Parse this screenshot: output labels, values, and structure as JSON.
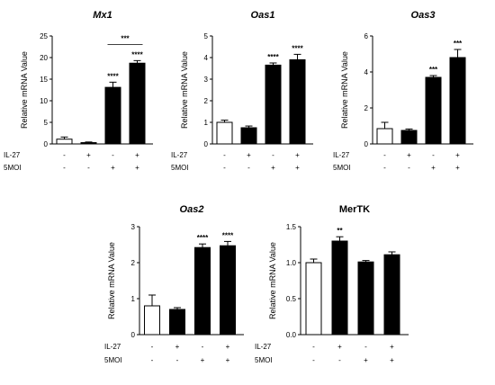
{
  "figure": {
    "condition_labels": [
      "IL-27",
      "5MOI"
    ]
  },
  "chart_data": [
    {
      "type": "bar",
      "title": "Mx1",
      "title_italic": true,
      "ylabel": "Relative mRNA Value",
      "ylim": [
        0,
        25
      ],
      "yticks": [
        0,
        5,
        10,
        15,
        20,
        25
      ],
      "ytick_labels": [
        "0",
        "5",
        "10",
        "15",
        "20",
        "25"
      ],
      "rows": [
        {
          "label": "IL-27",
          "signs": [
            "-",
            "+",
            "-",
            "+"
          ]
        },
        {
          "label": "5MOI",
          "signs": [
            "-",
            "-",
            "+",
            "+"
          ]
        }
      ],
      "values": [
        1.1,
        0.3,
        13.1,
        18.7
      ],
      "errors": [
        0.5,
        0.15,
        1.2,
        0.6
      ],
      "fills": [
        "#ffffff",
        "#000000",
        "#000000",
        "#000000"
      ],
      "significance": [
        "",
        "",
        "****",
        "****"
      ],
      "brackets": [
        {
          "from": 2,
          "to": 3,
          "y": 23,
          "label": "***"
        }
      ]
    },
    {
      "type": "bar",
      "title": "Oas1",
      "title_italic": true,
      "ylabel": "Relative mRNA Value",
      "ylim": [
        0,
        5
      ],
      "yticks": [
        0,
        1,
        2,
        3,
        4,
        5
      ],
      "ytick_labels": [
        "0",
        "1",
        "2",
        "3",
        "4",
        "5"
      ],
      "rows": [
        {
          "label": "IL-27",
          "signs": [
            "-",
            "+",
            "-",
            "+"
          ]
        },
        {
          "label": "5MOI",
          "signs": [
            "-",
            "-",
            "+",
            "+"
          ]
        }
      ],
      "values": [
        1.0,
        0.75,
        3.65,
        3.9
      ],
      "errors": [
        0.1,
        0.08,
        0.1,
        0.25
      ],
      "fills": [
        "#ffffff",
        "#000000",
        "#000000",
        "#000000"
      ],
      "significance": [
        "",
        "",
        "****",
        "****"
      ],
      "brackets": []
    },
    {
      "type": "bar",
      "title": "Oas3",
      "title_italic": true,
      "ylabel": "Relative mRNA Value",
      "ylim": [
        0,
        6
      ],
      "yticks": [
        0,
        2,
        4,
        6
      ],
      "ytick_labels": [
        "0",
        "2",
        "4",
        "6"
      ],
      "rows": [
        {
          "label": "IL-27",
          "signs": [
            "-",
            "+",
            "-",
            "+"
          ]
        },
        {
          "label": "5MOI",
          "signs": [
            "-",
            "-",
            "+",
            "+"
          ]
        }
      ],
      "values": [
        0.85,
        0.75,
        3.7,
        4.8
      ],
      "errors": [
        0.35,
        0.08,
        0.1,
        0.45
      ],
      "fills": [
        "#ffffff",
        "#000000",
        "#000000",
        "#000000"
      ],
      "significance": [
        "",
        "",
        "***",
        "***"
      ],
      "brackets": []
    },
    {
      "type": "bar",
      "title": "Oas2",
      "title_italic": true,
      "ylabel": "Relative mRNA Value",
      "ylim": [
        0,
        3
      ],
      "yticks": [
        0,
        1,
        2,
        3
      ],
      "ytick_labels": [
        "0",
        "1",
        "2",
        "3"
      ],
      "rows": [
        {
          "label": "IL-27",
          "signs": [
            "-",
            "+",
            "-",
            "+"
          ]
        },
        {
          "label": "5MOI",
          "signs": [
            "-",
            "-",
            "+",
            "+"
          ]
        }
      ],
      "values": [
        0.8,
        0.7,
        2.42,
        2.47
      ],
      "errors": [
        0.3,
        0.05,
        0.1,
        0.12
      ],
      "fills": [
        "#ffffff",
        "#000000",
        "#000000",
        "#000000"
      ],
      "significance": [
        "",
        "",
        "****",
        "****"
      ],
      "brackets": []
    },
    {
      "type": "bar",
      "title": "MerTK",
      "title_italic": false,
      "ylabel": "Relative mRNA Value",
      "ylim": [
        0,
        1.5
      ],
      "yticks": [
        0,
        0.5,
        1.0,
        1.5
      ],
      "ytick_labels": [
        "0.0",
        "0.5",
        "1.0",
        "1.5"
      ],
      "rows": [
        {
          "label": "IL-27",
          "signs": [
            "-",
            "+",
            "-",
            "+"
          ]
        },
        {
          "label": "5MOI",
          "signs": [
            "-",
            "-",
            "+",
            "+"
          ]
        }
      ],
      "values": [
        1.0,
        1.3,
        1.01,
        1.11
      ],
      "errors": [
        0.05,
        0.06,
        0.02,
        0.04
      ],
      "fills": [
        "#ffffff",
        "#000000",
        "#000000",
        "#000000"
      ],
      "significance": [
        "",
        "**",
        "",
        ""
      ],
      "brackets": []
    }
  ]
}
